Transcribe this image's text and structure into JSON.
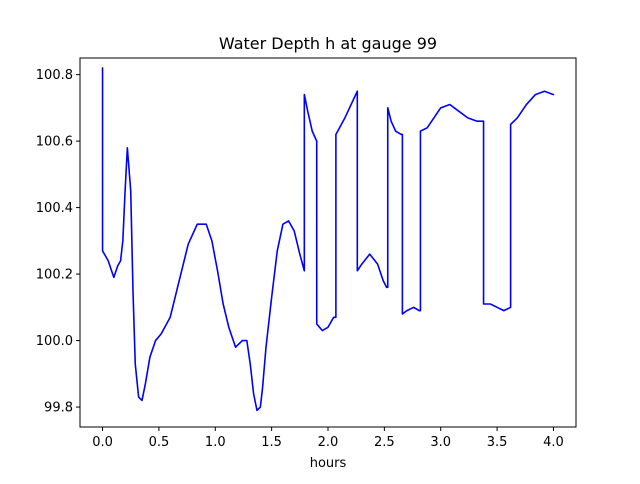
{
  "chart_data": {
    "type": "line",
    "title": "Water Depth h at gauge 99",
    "xlabel": "hours",
    "ylabel": "",
    "xlim": [
      -0.2,
      4.2
    ],
    "ylim": [
      99.74,
      100.85
    ],
    "grid": false,
    "x_ticks": [
      {
        "value": 0.0,
        "label": "0.0"
      },
      {
        "value": 0.5,
        "label": "0.5"
      },
      {
        "value": 1.0,
        "label": "1.0"
      },
      {
        "value": 1.5,
        "label": "1.5"
      },
      {
        "value": 2.0,
        "label": "2.0"
      },
      {
        "value": 2.5,
        "label": "2.5"
      },
      {
        "value": 3.0,
        "label": "3.0"
      },
      {
        "value": 3.5,
        "label": "3.5"
      },
      {
        "value": 4.0,
        "label": "4.0"
      }
    ],
    "y_ticks": [
      {
        "value": 99.8,
        "label": "99.8"
      },
      {
        "value": 100.0,
        "label": "100.0"
      },
      {
        "value": 100.2,
        "label": "100.2"
      },
      {
        "value": 100.4,
        "label": "100.4"
      },
      {
        "value": 100.6,
        "label": "100.6"
      },
      {
        "value": 100.8,
        "label": "100.8"
      }
    ],
    "series": [
      {
        "color": "#0000ff",
        "x": [
          0.0,
          0.0,
          0.0,
          0.05,
          0.1,
          0.135,
          0.16,
          0.18,
          0.2,
          0.22,
          0.25,
          0.27,
          0.29,
          0.32,
          0.35,
          0.38,
          0.42,
          0.47,
          0.52,
          0.6,
          0.68,
          0.76,
          0.84,
          0.92,
          0.97,
          1.02,
          1.07,
          1.12,
          1.18,
          1.24,
          1.28,
          1.31,
          1.34,
          1.37,
          1.4,
          1.42,
          1.45,
          1.5,
          1.55,
          1.6,
          1.65,
          1.7,
          1.75,
          1.79,
          1.79,
          1.82,
          1.86,
          1.9,
          1.9,
          1.95,
          2.0,
          2.05,
          2.07,
          2.07,
          2.15,
          2.26,
          2.26,
          2.3,
          2.37,
          2.44,
          2.49,
          2.52,
          2.53,
          2.53,
          2.56,
          2.6,
          2.65,
          2.66,
          2.66,
          2.7,
          2.76,
          2.81,
          2.82,
          2.82,
          2.88,
          2.94,
          3.0,
          3.08,
          3.16,
          3.24,
          3.32,
          3.38,
          3.38,
          3.44,
          3.5,
          3.56,
          3.62,
          3.62,
          3.68,
          3.76,
          3.84,
          3.92,
          4.0
        ],
        "y": [
          100.82,
          100.82,
          100.27,
          100.24,
          100.19,
          100.225,
          100.24,
          100.3,
          100.45,
          100.58,
          100.45,
          100.15,
          99.93,
          99.83,
          99.82,
          99.87,
          99.95,
          100.0,
          100.02,
          100.07,
          100.18,
          100.29,
          100.35,
          100.35,
          100.3,
          100.21,
          100.11,
          100.04,
          99.98,
          100.0,
          100.0,
          99.93,
          99.84,
          99.79,
          99.8,
          99.86,
          99.98,
          100.13,
          100.27,
          100.35,
          100.36,
          100.33,
          100.26,
          100.21,
          100.74,
          100.69,
          100.63,
          100.6,
          100.05,
          100.03,
          100.04,
          100.07,
          100.07,
          100.62,
          100.67,
          100.75,
          100.21,
          100.23,
          100.26,
          100.23,
          100.18,
          100.16,
          100.16,
          100.7,
          100.66,
          100.63,
          100.62,
          100.62,
          100.08,
          100.09,
          100.1,
          100.09,
          100.09,
          100.63,
          100.64,
          100.67,
          100.7,
          100.71,
          100.69,
          100.67,
          100.66,
          100.66,
          100.11,
          100.11,
          100.1,
          100.09,
          100.1,
          100.65,
          100.67,
          100.71,
          100.74,
          100.75,
          100.74
        ]
      }
    ]
  }
}
